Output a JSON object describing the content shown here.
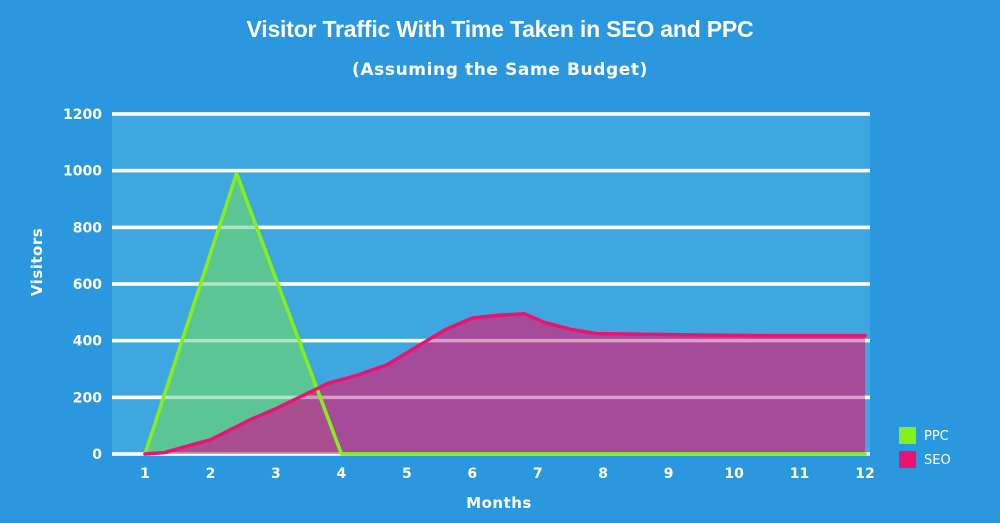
{
  "chart_data": {
    "type": "area",
    "title": "Visitor Traffic With Time Taken in SEO and PPC",
    "subtitle": "(Assuming the Same Budget)",
    "xlabel": "Months",
    "ylabel": "Visitors",
    "xlim": [
      1,
      12
    ],
    "ylim": [
      0,
      1200
    ],
    "x_ticks": [
      1,
      2,
      3,
      4,
      5,
      6,
      7,
      8,
      9,
      10,
      11,
      12
    ],
    "y_ticks": [
      0,
      200,
      400,
      600,
      800,
      1000,
      1200
    ],
    "grid": true,
    "legend_position": "bottom-right",
    "series": [
      {
        "name": "PPC",
        "color": "#84f019",
        "fill": "#60c98a",
        "points": [
          [
            1,
            0
          ],
          [
            2.4,
            990
          ],
          [
            4,
            0
          ],
          [
            12,
            0
          ]
        ]
      },
      {
        "name": "SEO",
        "color": "#ec1272",
        "fill": "#b43f90",
        "points": [
          [
            1,
            0
          ],
          [
            1.3,
            5
          ],
          [
            1.6,
            25
          ],
          [
            2,
            50
          ],
          [
            2.3,
            85
          ],
          [
            2.6,
            120
          ],
          [
            3,
            160
          ],
          [
            3.4,
            205
          ],
          [
            3.8,
            250
          ],
          [
            4.2,
            275
          ],
          [
            4.7,
            315
          ],
          [
            5.2,
            385
          ],
          [
            5.6,
            440
          ],
          [
            6,
            480
          ],
          [
            6.4,
            490
          ],
          [
            6.8,
            495
          ],
          [
            7.1,
            465
          ],
          [
            7.5,
            440
          ],
          [
            7.9,
            425
          ],
          [
            8.5,
            423
          ],
          [
            9.5,
            420
          ],
          [
            10.5,
            418
          ],
          [
            12,
            418
          ]
        ]
      }
    ]
  }
}
